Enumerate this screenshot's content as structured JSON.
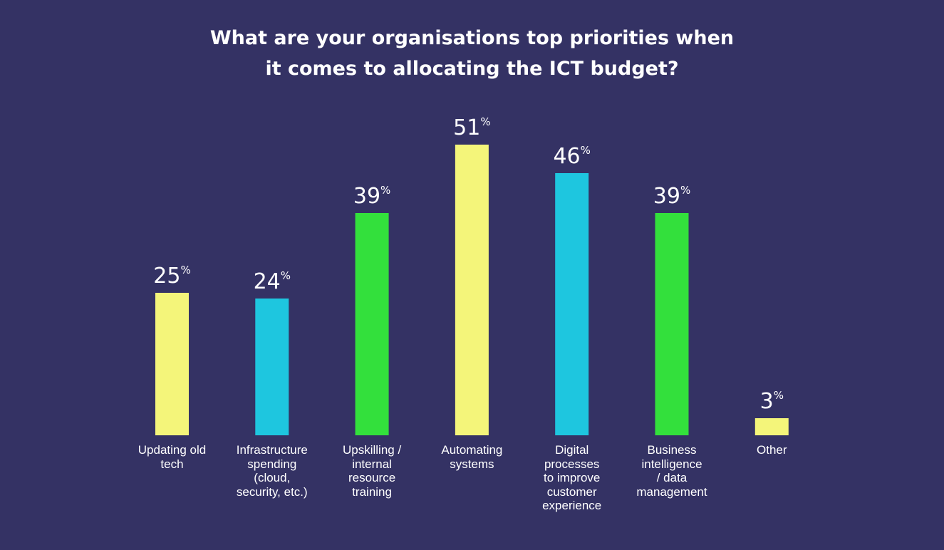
{
  "chart_data": {
    "type": "bar",
    "title": "What are your organisations top priorities when it comes to allocating the ICT budget?",
    "title_lines": [
      "What are your organisations top priorities when",
      "it comes to allocating the ICT budget?"
    ],
    "categories": [
      "Updating old tech",
      "Infrastructure spending (cloud, security, etc.)",
      "Upskilling / internal resource training",
      "Automating systems",
      "Digital processes to improve customer experience",
      "Business intelligence / data management",
      "Other"
    ],
    "category_label_lines": [
      [
        "Updating old",
        "tech"
      ],
      [
        "Infrastructure",
        "spending",
        "(cloud,",
        "security, etc.)"
      ],
      [
        "Upskilling /",
        "internal",
        "resource",
        "training"
      ],
      [
        "Automating",
        "systems"
      ],
      [
        "Digital",
        "processes",
        "to improve",
        "customer",
        "experience"
      ],
      [
        "Business",
        "intelligence",
        "/ data",
        "management"
      ],
      [
        "Other"
      ]
    ],
    "values": [
      25,
      24,
      39,
      51,
      46,
      39,
      3
    ],
    "value_labels": [
      "25",
      "24",
      "39",
      "51",
      "46",
      "39",
      "3"
    ],
    "value_suffix": "%",
    "bar_colors": [
      "#f4f57a",
      "#1ec6df",
      "#33e03c",
      "#f4f57a",
      "#1ec6df",
      "#33e03c",
      "#f4f57a"
    ],
    "unit": "%",
    "xlabel": "",
    "ylabel": "",
    "grid": false,
    "legend": "none"
  },
  "colors": {
    "background": "#343264",
    "text": "#ffffff"
  }
}
